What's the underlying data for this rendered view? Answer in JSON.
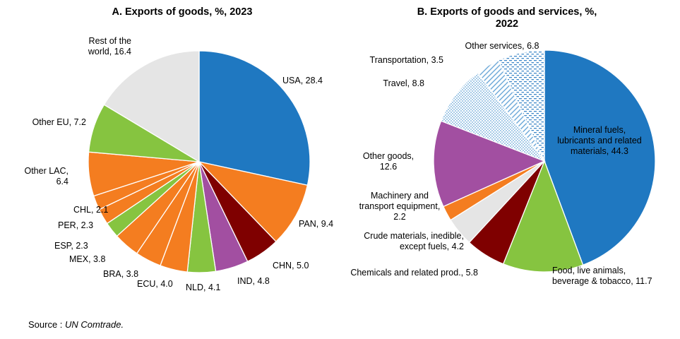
{
  "source": {
    "prefix": "Source : ",
    "name": "UN Comtrade."
  },
  "chart_data": [
    {
      "type": "pie",
      "title": "A. Exports of goods, %, 2023",
      "slices": [
        {
          "label": "USA, 28.4",
          "value": 28.4,
          "color": "#1f78c1"
        },
        {
          "label": "PAN, 9.4",
          "value": 9.4,
          "color": "#f47d20"
        },
        {
          "label": "CHN, 5.0",
          "value": 5.0,
          "color": "#7f0000"
        },
        {
          "label": "IND, 4.8",
          "value": 4.8,
          "color": "#a24fa1"
        },
        {
          "label": "NLD, 4.1",
          "value": 4.1,
          "color": "#86c440"
        },
        {
          "label": "ECU, 4.0",
          "value": 4.0,
          "color": "#f47d20"
        },
        {
          "label": "BRA, 3.8",
          "value": 3.8,
          "color": "#f47d20"
        },
        {
          "label": "MEX, 3.8",
          "value": 3.8,
          "color": "#f47d20"
        },
        {
          "label": "ESP, 2.3",
          "value": 2.3,
          "color": "#86c440"
        },
        {
          "label": "PER, 2.3",
          "value": 2.3,
          "color": "#f47d20"
        },
        {
          "label": "CHL, 2.1",
          "value": 2.1,
          "color": "#f47d20"
        },
        {
          "label": [
            "Other LAC,",
            "6.4"
          ],
          "value": 6.4,
          "color": "#f47d20"
        },
        {
          "label": "Other EU, 7.2",
          "value": 7.2,
          "color": "#86c440"
        },
        {
          "label": [
            "Rest of the",
            "world, 16.4"
          ],
          "value": 16.4,
          "color": "#e5e5e5"
        }
      ]
    },
    {
      "type": "pie",
      "title": [
        "B. Exports of goods and services, %,",
        "2022"
      ],
      "slices": [
        {
          "label": [
            "Mineral fuels,",
            "lubricants and related",
            "materials, 44.3"
          ],
          "value": 44.3,
          "color": "#1f78c1"
        },
        {
          "label": [
            "Food, live animals,",
            "beverage & tobacco, 11.7"
          ],
          "value": 11.7,
          "color": "#86c440"
        },
        {
          "label": "Chemicals and related prod., 5.8",
          "value": 5.8,
          "color": "#7f0000"
        },
        {
          "label": [
            "Crude materials, inedible,",
            "except fuels, 4.2"
          ],
          "value": 4.2,
          "color": "#e5e5e5"
        },
        {
          "label": [
            "Machinery and",
            "transport equipment,",
            "2.2"
          ],
          "value": 2.2,
          "color": "#f47d20"
        },
        {
          "label": [
            "Other goods,",
            "12.6"
          ],
          "value": 12.6,
          "color": "#a24fa1"
        },
        {
          "label": "Travel, 8.8",
          "value": 8.8,
          "color": "#6aa7d8",
          "pattern": "dots"
        },
        {
          "label": "Transportation, 3.5",
          "value": 3.5,
          "color": "#6aa7d8",
          "pattern": "stripes"
        },
        {
          "label": "Other services, 6.8",
          "value": 6.8,
          "color": "#6aa7d8",
          "pattern": "dashes"
        }
      ]
    }
  ]
}
